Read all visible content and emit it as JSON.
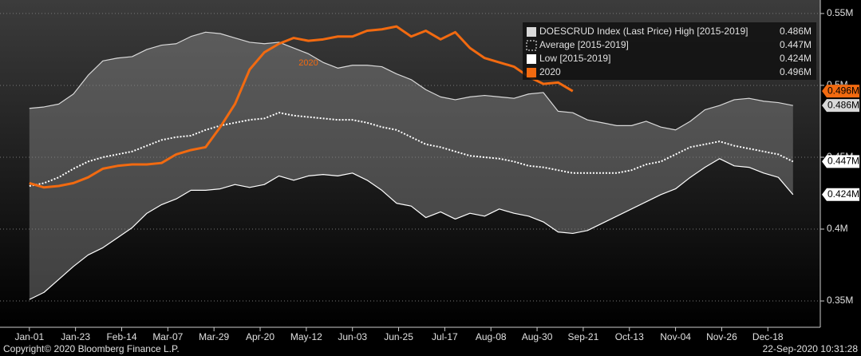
{
  "chart_data": {
    "type": "line",
    "x": [
      0,
      7,
      14,
      21,
      28,
      35,
      42,
      49,
      56,
      63,
      70,
      77,
      84,
      91,
      98,
      105,
      112,
      119,
      126,
      133,
      140,
      147,
      154,
      161,
      168,
      175,
      182,
      189,
      196,
      203,
      210,
      217,
      224,
      231,
      238,
      245,
      252,
      259,
      266,
      273,
      280,
      287,
      294,
      301,
      308,
      315,
      322,
      329,
      336,
      343,
      350,
      357,
      364
    ],
    "xlim": [
      -14,
      377
    ],
    "xticks": [
      {
        "value": 0,
        "label": "Jan-01"
      },
      {
        "value": 22,
        "label": "Jan-23"
      },
      {
        "value": 44,
        "label": "Feb-14"
      },
      {
        "value": 66,
        "label": "Mar-07"
      },
      {
        "value": 88,
        "label": "Mar-29"
      },
      {
        "value": 110,
        "label": "Apr-20"
      },
      {
        "value": 132,
        "label": "May-12"
      },
      {
        "value": 154,
        "label": "Jun-03"
      },
      {
        "value": 176,
        "label": "Jun-25"
      },
      {
        "value": 198,
        "label": "Jul-17"
      },
      {
        "value": 220,
        "label": "Aug-08"
      },
      {
        "value": 242,
        "label": "Aug-30"
      },
      {
        "value": 264,
        "label": "Sep-21"
      },
      {
        "value": 286,
        "label": "Oct-13"
      },
      {
        "value": 308,
        "label": "Nov-04"
      },
      {
        "value": 330,
        "label": "Nov-26"
      },
      {
        "value": 352,
        "label": "Dec-18"
      }
    ],
    "ylim": [
      0.3317,
      0.5594
    ],
    "yticks": [
      {
        "value": 0.35,
        "label": "0.35M"
      },
      {
        "value": 0.4,
        "label": "0.4M"
      },
      {
        "value": 0.45,
        "label": "0.45M"
      },
      {
        "value": 0.5,
        "label": "0.5M"
      },
      {
        "value": 0.55,
        "label": "0.55M"
      }
    ],
    "grid": true,
    "band_color": "#8a8a8a",
    "series": [
      {
        "name": "DOESCRUD Index (Last Price) High [2015-2019]",
        "color": "#d9d9d9",
        "last_label": "0.486M",
        "last_value": 0.486,
        "values": [
          0.484,
          0.485,
          0.487,
          0.494,
          0.507,
          0.517,
          0.519,
          0.52,
          0.525,
          0.528,
          0.529,
          0.534,
          0.537,
          0.536,
          0.533,
          0.53,
          0.529,
          0.53,
          0.526,
          0.522,
          0.516,
          0.512,
          0.514,
          0.514,
          0.513,
          0.508,
          0.504,
          0.497,
          0.492,
          0.49,
          0.492,
          0.493,
          0.492,
          0.491,
          0.494,
          0.495,
          0.482,
          0.481,
          0.476,
          0.474,
          0.472,
          0.472,
          0.475,
          0.471,
          0.469,
          0.475,
          0.483,
          0.486,
          0.49,
          0.491,
          0.489,
          0.488,
          0.486
        ]
      },
      {
        "name": "Average [2015-2019]",
        "color": "#ffffff",
        "dashed": true,
        "last_label": "0.447M",
        "last_value": 0.447,
        "values": [
          0.43,
          0.432,
          0.436,
          0.442,
          0.447,
          0.45,
          0.452,
          0.454,
          0.458,
          0.462,
          0.464,
          0.465,
          0.469,
          0.472,
          0.474,
          0.476,
          0.477,
          0.481,
          0.479,
          0.478,
          0.477,
          0.476,
          0.476,
          0.474,
          0.471,
          0.469,
          0.464,
          0.459,
          0.457,
          0.454,
          0.451,
          0.45,
          0.449,
          0.447,
          0.444,
          0.443,
          0.441,
          0.439,
          0.439,
          0.439,
          0.439,
          0.441,
          0.445,
          0.447,
          0.452,
          0.457,
          0.459,
          0.461,
          0.458,
          0.456,
          0.454,
          0.452,
          0.447
        ]
      },
      {
        "name": "Low [2015-2019]",
        "color": "#ffffff",
        "last_label": "0.424M",
        "last_value": 0.424,
        "values": [
          0.351,
          0.356,
          0.365,
          0.374,
          0.382,
          0.387,
          0.394,
          0.401,
          0.411,
          0.417,
          0.421,
          0.427,
          0.427,
          0.428,
          0.431,
          0.429,
          0.431,
          0.437,
          0.434,
          0.437,
          0.438,
          0.437,
          0.439,
          0.434,
          0.427,
          0.418,
          0.416,
          0.408,
          0.412,
          0.407,
          0.411,
          0.409,
          0.414,
          0.411,
          0.409,
          0.405,
          0.398,
          0.397,
          0.399,
          0.404,
          0.409,
          0.414,
          0.419,
          0.424,
          0.428,
          0.436,
          0.443,
          0.449,
          0.444,
          0.443,
          0.439,
          0.436,
          0.424
        ]
      },
      {
        "name": "2020",
        "color": "#f26a10",
        "last_label": "0.496M",
        "last_value": 0.496,
        "values": [
          0.432,
          0.429,
          0.43,
          0.432,
          0.436,
          0.442,
          0.444,
          0.445,
          0.445,
          0.446,
          0.452,
          0.455,
          0.457,
          0.471,
          0.487,
          0.511,
          0.523,
          0.529,
          0.533,
          0.531,
          0.532,
          0.534,
          0.534,
          0.538,
          0.539,
          0.541,
          0.534,
          0.538,
          0.532,
          0.537,
          0.526,
          0.519,
          0.516,
          0.513,
          0.506,
          0.501,
          0.502,
          0.496,
          null,
          null,
          null,
          null,
          null,
          null,
          null,
          null,
          null,
          null,
          null,
          null,
          null,
          null,
          null
        ]
      }
    ],
    "copyright": "Copyright© 2020 Bloomberg Finance L.P.",
    "timestamp": "22-Sep-2020 10:31:28"
  }
}
